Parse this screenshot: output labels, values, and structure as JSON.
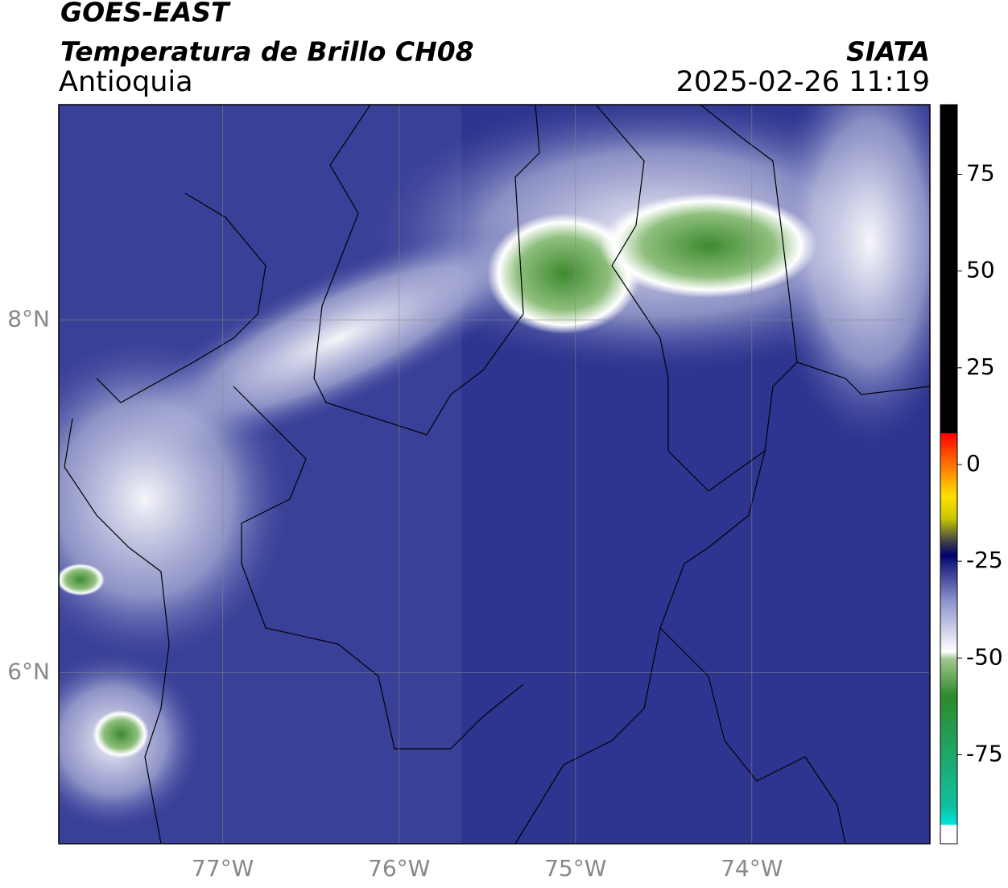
{
  "header": {
    "title": "GOES-EAST",
    "subtitle": "Temperatura de Brillo CH08",
    "region": "Antioquia",
    "source": "SIATA",
    "datetime": "2025-02-26 11:19"
  },
  "map": {
    "xlim": [
      -77.93,
      -72.99
    ],
    "ylim": [
      5.03,
      9.22
    ],
    "xticks": [
      {
        "value": -77,
        "label": "77°W"
      },
      {
        "value": -76,
        "label": "76°W"
      },
      {
        "value": -75,
        "label": "75°W"
      },
      {
        "value": -74,
        "label": "74°W"
      }
    ],
    "yticks": [
      {
        "value": 6,
        "label": "6°N"
      },
      {
        "value": 8,
        "label": "8°N"
      }
    ],
    "grid": true
  },
  "colorbar": {
    "lim": [
      -98,
      93
    ],
    "ticks": [
      -75,
      -50,
      -25,
      0,
      25,
      50,
      75
    ]
  }
}
